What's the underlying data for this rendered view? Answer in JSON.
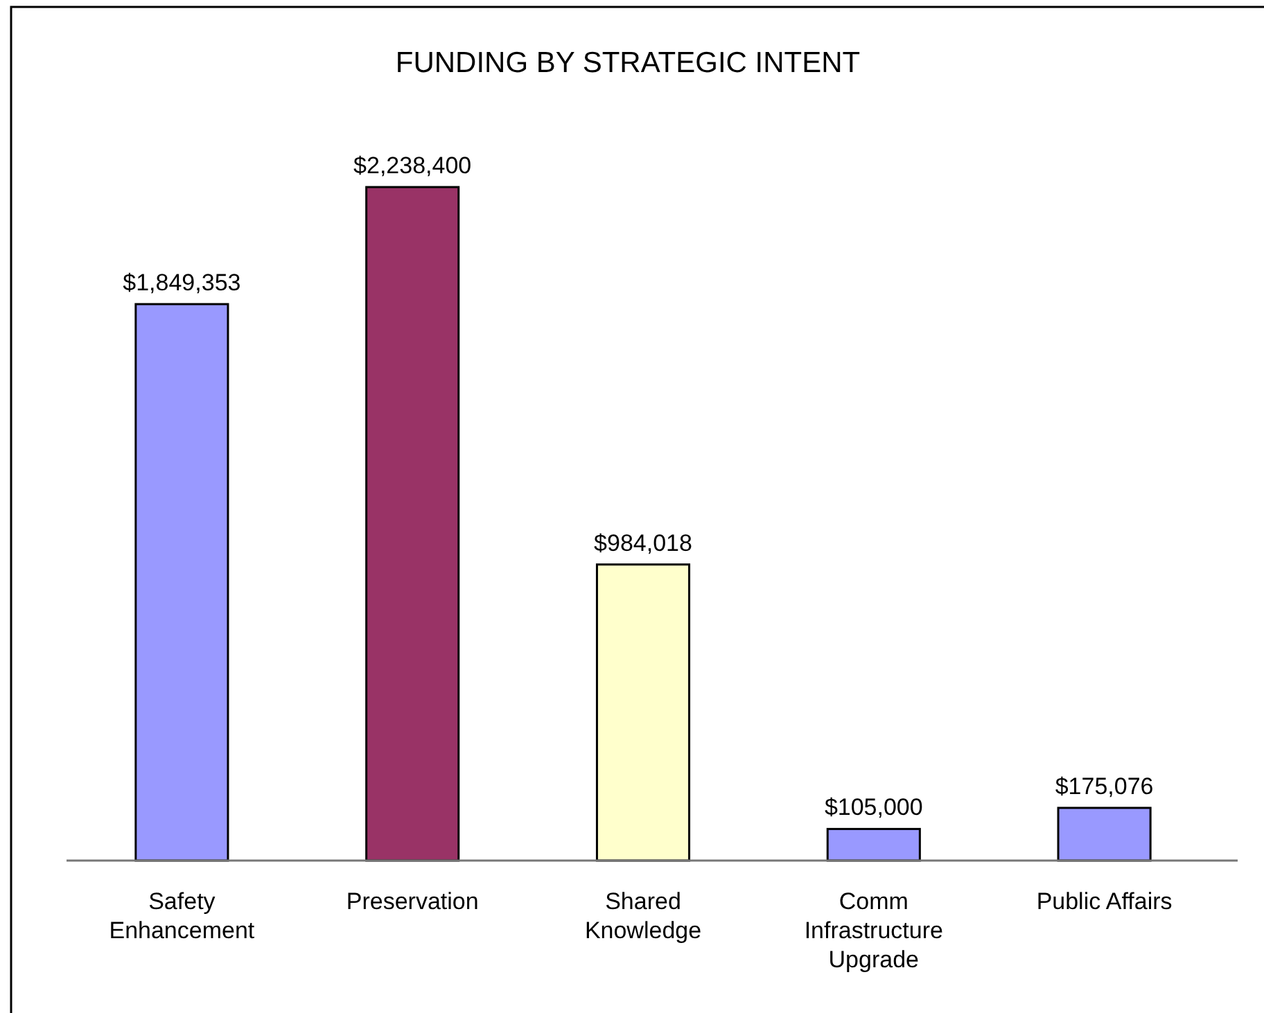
{
  "chart_data": {
    "type": "bar",
    "title": "FUNDING BY STRATEGIC INTENT",
    "categories": [
      "Safety Enhancement",
      "Preservation",
      "Shared Knowledge",
      "Comm Infrastructure Upgrade",
      "Public Affairs"
    ],
    "values": [
      1849353,
      2238400,
      984018,
      105000,
      175076
    ],
    "colors": [
      "#9999ff",
      "#993366",
      "#ffffcc",
      "#9999ff",
      "#9999ff"
    ],
    "value_labels": [
      "$1,849,353",
      "$2,238,400",
      "$984,018",
      "$105,000",
      "$175,076"
    ]
  }
}
